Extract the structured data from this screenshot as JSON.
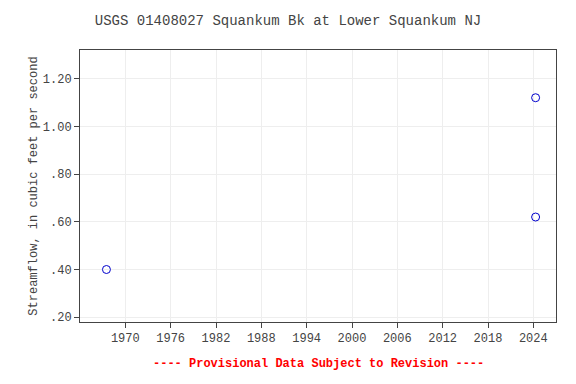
{
  "chart_data": {
    "type": "scatter",
    "title": "USGS 01408027 Squankum Bk at Lower Squankum NJ",
    "ylabel": "Streamflow, in cubic feet per second",
    "x": [
      1967.5,
      2024.3,
      2024.3
    ],
    "values": [
      0.4,
      1.12,
      0.62
    ],
    "color": "#0000cc",
    "marker": "circle-open",
    "xlim": [
      1964,
      2027
    ],
    "ylim": [
      0.18,
      1.32
    ],
    "xticks": [
      1970,
      1976,
      1982,
      1988,
      1994,
      2000,
      2006,
      2012,
      2018,
      2024
    ],
    "yticks": [
      {
        "value": 0.2,
        "label": ".20"
      },
      {
        "value": 0.4,
        "label": ".40"
      },
      {
        "value": 0.6,
        "label": ".60"
      },
      {
        "value": 0.8,
        "label": ".80"
      },
      {
        "value": 1.0,
        "label": "1.00"
      },
      {
        "value": 1.2,
        "label": "1.20"
      }
    ],
    "grid": true,
    "annotations": [
      {
        "text": "---- Provisional Data Subject to Revision ----",
        "color": "#ff0000"
      }
    ]
  }
}
